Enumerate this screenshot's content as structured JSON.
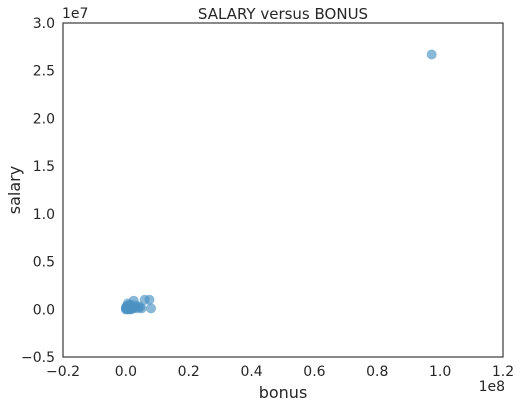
{
  "chart_data": {
    "type": "scatter",
    "title": "SALARY versus BONUS",
    "xlabel": "bonus",
    "ylabel": "salary",
    "xlim": [
      -0.2,
      1.2
    ],
    "ylim": [
      -0.5,
      3.0
    ],
    "x_multiplier_label": "1e8",
    "y_multiplier_label": "1e7",
    "x_ticks": [
      "−0.2",
      "0.0",
      "0.2",
      "0.4",
      "0.6",
      "0.8",
      "1.0",
      "1.2"
    ],
    "y_ticks": [
      "−0.5",
      "0.0",
      "0.5",
      "1.0",
      "1.5",
      "2.0",
      "2.5",
      "3.0"
    ],
    "x_tick_values": [
      -0.2,
      0.0,
      0.2,
      0.4,
      0.6,
      0.8,
      1.0,
      1.2
    ],
    "y_tick_values": [
      -0.5,
      0.0,
      0.5,
      1.0,
      1.5,
      2.0,
      2.5,
      3.0
    ],
    "marker_color": "#4c92c3",
    "grid": false,
    "points": [
      {
        "x": 0.973,
        "y": 2.67
      },
      {
        "x": 0.075,
        "y": 0.1
      },
      {
        "x": 0.06,
        "y": 0.1
      },
      {
        "x": 0.08,
        "y": 0.01
      },
      {
        "x": 0.025,
        "y": 0.09
      },
      {
        "x": 0.05,
        "y": 0.01
      },
      {
        "x": 0.04,
        "y": 0.03
      },
      {
        "x": 0.035,
        "y": 0.01
      },
      {
        "x": 0.03,
        "y": 0.04
      },
      {
        "x": 0.02,
        "y": 0.02
      },
      {
        "x": 0.015,
        "y": 0.05
      },
      {
        "x": 0.01,
        "y": 0.02
      },
      {
        "x": 0.008,
        "y": 0.04
      },
      {
        "x": 0.005,
        "y": 0.01
      },
      {
        "x": 0.003,
        "y": 0.03
      },
      {
        "x": 0.002,
        "y": 0.0
      },
      {
        "x": 0.0,
        "y": 0.02
      },
      {
        "x": 0.001,
        "y": 0.01
      },
      {
        "x": 0.012,
        "y": 0.0
      },
      {
        "x": 0.018,
        "y": 0.03
      },
      {
        "x": 0.022,
        "y": 0.01
      },
      {
        "x": 0.028,
        "y": 0.02
      },
      {
        "x": 0.045,
        "y": 0.02
      },
      {
        "x": 0.006,
        "y": 0.06
      },
      {
        "x": 0.009,
        "y": 0.0
      },
      {
        "x": 0.004,
        "y": 0.02
      },
      {
        "x": 0.013,
        "y": 0.01
      },
      {
        "x": 0.017,
        "y": 0.0
      },
      {
        "x": 0.0,
        "y": 0.0
      },
      {
        "x": 0.007,
        "y": 0.03
      }
    ]
  }
}
